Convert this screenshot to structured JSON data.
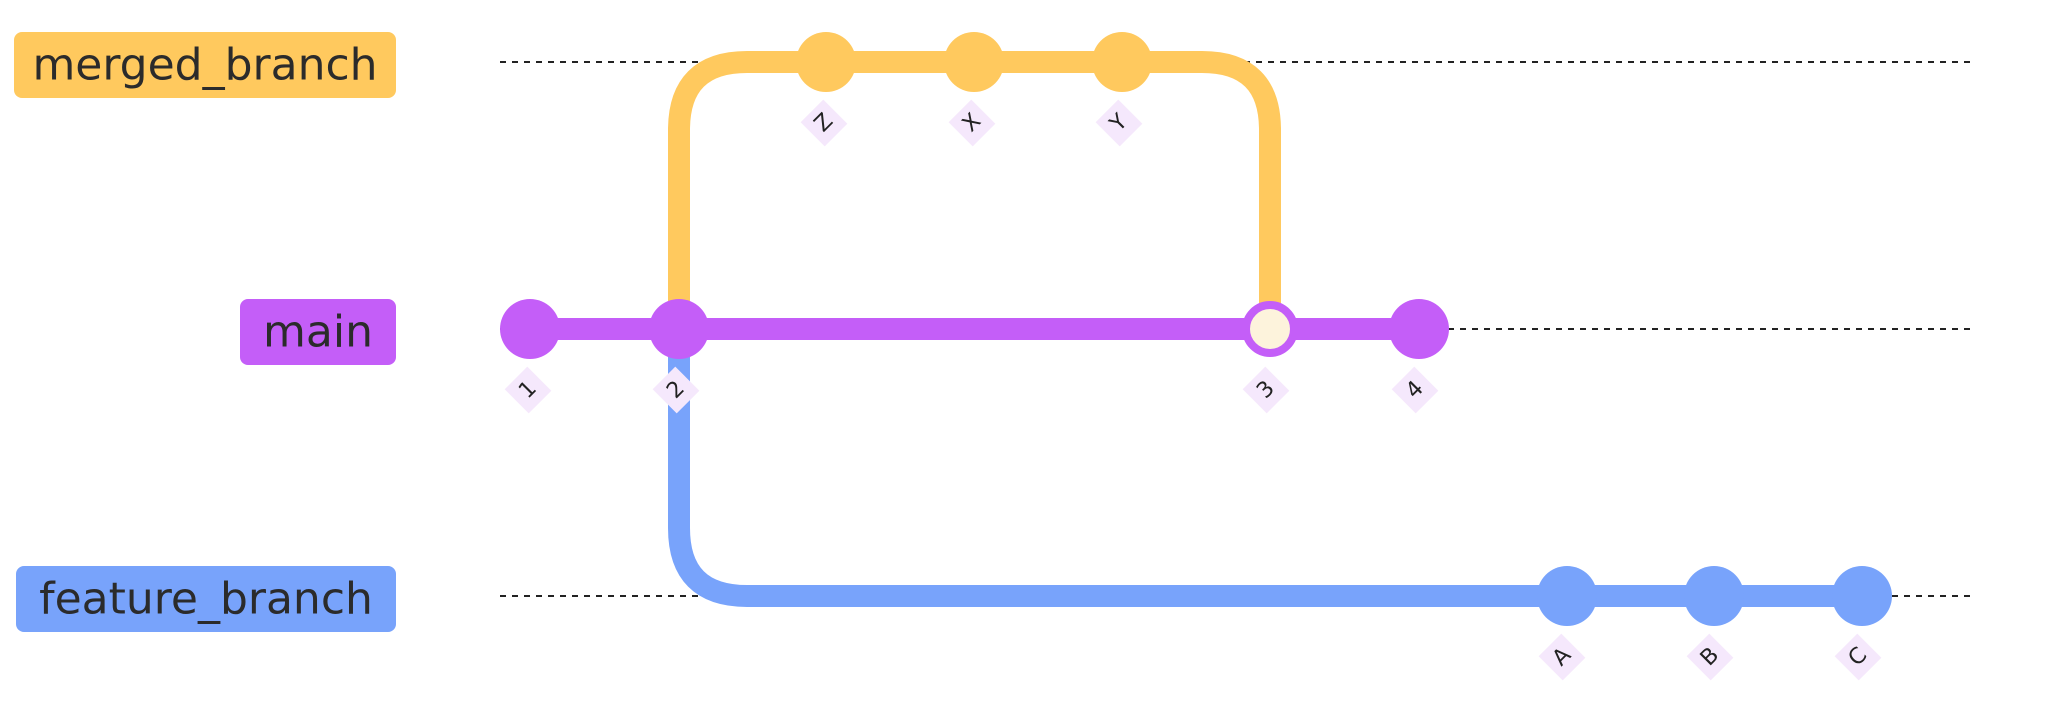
{
  "colors": {
    "merged_branch": "#ffc95e",
    "main": "#c45ef8",
    "feature_branch": "#78a3fb",
    "merge_commit_fill": "#fdf3dc",
    "label_bg": "#f5e8fc",
    "dotted_line": "#222222"
  },
  "branches": [
    {
      "id": "merged_branch",
      "name": "merged_branch"
    },
    {
      "id": "main",
      "name": "main"
    },
    {
      "id": "feature_branch",
      "name": "feature_branch"
    }
  ],
  "commits": [
    {
      "id": "1",
      "branch": "main",
      "type": "normal"
    },
    {
      "id": "2",
      "branch": "main",
      "type": "normal"
    },
    {
      "id": "Z",
      "branch": "merged_branch",
      "type": "normal"
    },
    {
      "id": "X",
      "branch": "merged_branch",
      "type": "normal"
    },
    {
      "id": "Y",
      "branch": "merged_branch",
      "type": "normal"
    },
    {
      "id": "3",
      "branch": "main",
      "type": "merge"
    },
    {
      "id": "4",
      "branch": "main",
      "type": "normal"
    },
    {
      "id": "A",
      "branch": "feature_branch",
      "type": "normal"
    },
    {
      "id": "B",
      "branch": "feature_branch",
      "type": "normal"
    },
    {
      "id": "C",
      "branch": "feature_branch",
      "type": "normal"
    }
  ]
}
